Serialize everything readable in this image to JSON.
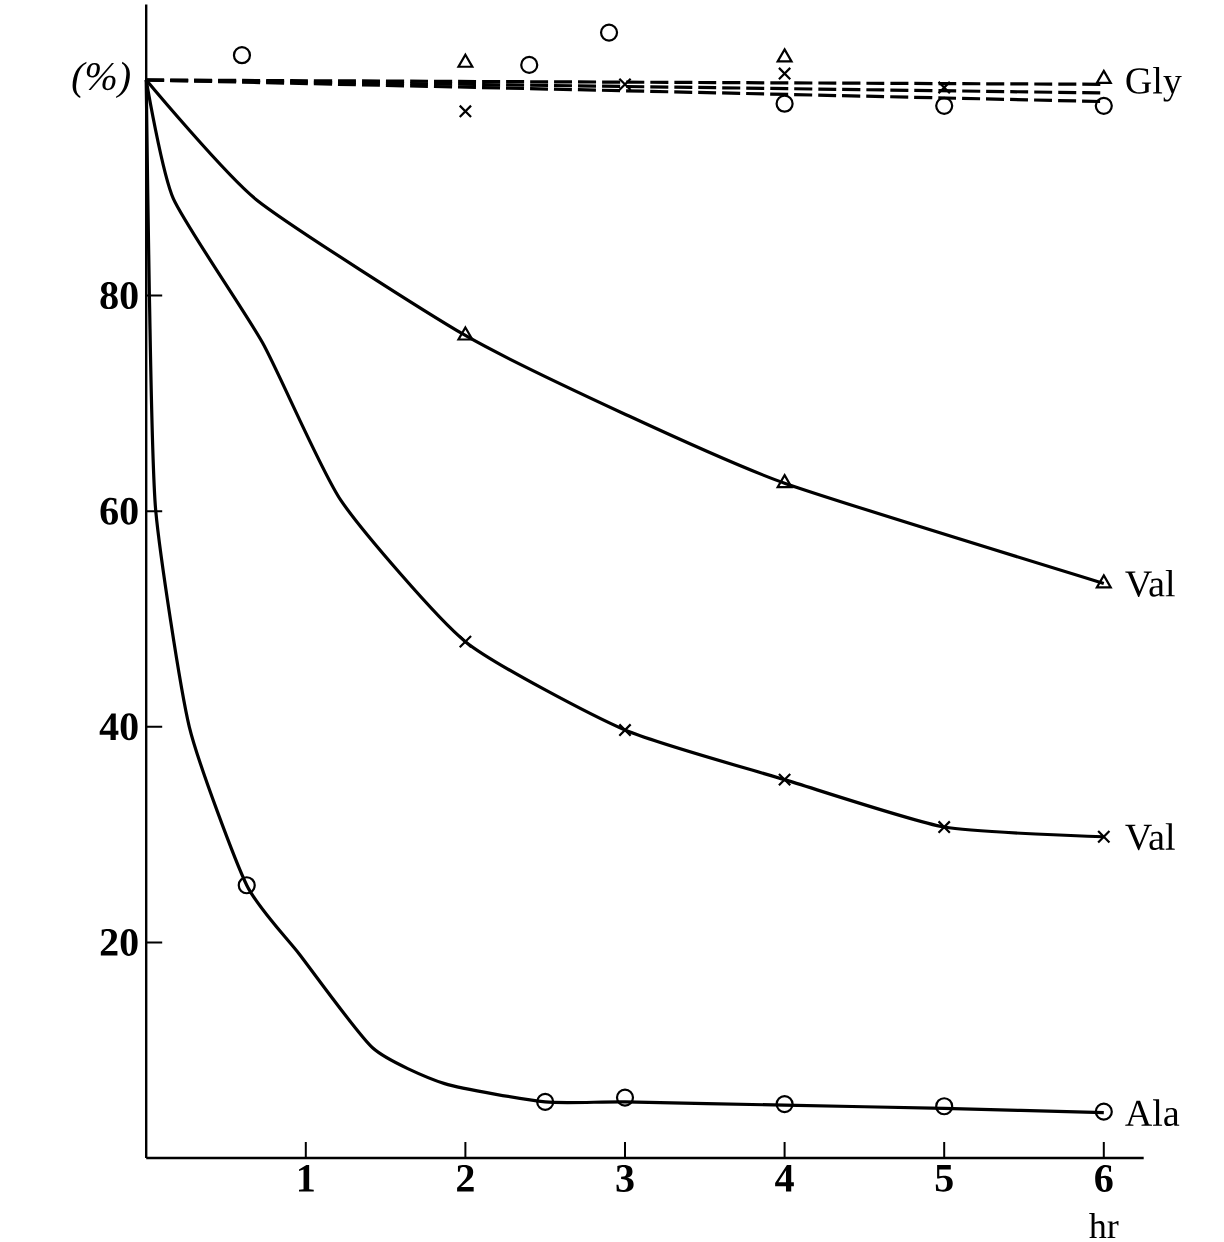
{
  "chart_data": {
    "type": "line",
    "xlabel": "hr",
    "ylabel": "(%)",
    "xlim": [
      0,
      6.25
    ],
    "ylim": [
      0,
      107
    ],
    "xticks": [
      1,
      2,
      3,
      4,
      5,
      6
    ],
    "yticks": [
      20,
      40,
      60,
      80
    ],
    "series": [
      {
        "name": "Gly",
        "color": "#000000",
        "marker": "none",
        "line_style": "dashed",
        "x": [
          0,
          6
        ],
        "values": [
          100,
          99.6
        ]
      },
      {
        "color": "#000000",
        "marker": "none",
        "line_style": "dashed",
        "x": [
          0,
          6
        ],
        "values": [
          100,
          98.8
        ]
      },
      {
        "color": "#000000",
        "marker": "none",
        "line_style": "dashed",
        "x": [
          0,
          6
        ],
        "values": [
          100,
          98.0
        ]
      },
      {
        "type": "scatter",
        "color": "#000000",
        "marker": "circle",
        "x": [
          0.6,
          2.4,
          2.9,
          4,
          5,
          6
        ],
        "values": [
          102.3,
          101.4,
          104.4,
          97.8,
          97.6,
          97.6
        ]
      },
      {
        "type": "scatter",
        "color": "#000000",
        "marker": "triangle",
        "x": [
          2,
          4,
          6
        ],
        "values": [
          101.6,
          102.1,
          100.1
        ]
      },
      {
        "type": "scatter",
        "color": "#000000",
        "marker": "cross",
        "x": [
          2,
          3,
          4,
          5
        ],
        "values": [
          97.1,
          99.6,
          100.6,
          99.3
        ]
      },
      {
        "name": "Val",
        "color": "#000000",
        "marker": "none",
        "line_style": "solid",
        "x": [
          0,
          0.69,
          2,
          3,
          4,
          6
        ],
        "values": [
          100,
          88.9,
          76.3,
          69.0,
          62.6,
          53.3
        ]
      },
      {
        "type": "scatter",
        "color": "#000000",
        "marker": "triangle",
        "x": [
          2,
          4,
          6
        ],
        "values": [
          76.3,
          62.6,
          53.3
        ]
      },
      {
        "name": "Val",
        "color": "#000000",
        "marker": "none",
        "line_style": "solid",
        "x": [
          0,
          0.17,
          0.73,
          1.22,
          2,
          3,
          4,
          5,
          6
        ],
        "values": [
          100,
          89,
          75.6,
          61.0,
          47.9,
          39.7,
          35.1,
          30.7,
          29.8
        ]
      },
      {
        "type": "scatter",
        "color": "#000000",
        "marker": "cross",
        "x": [
          2,
          3,
          4,
          5,
          6
        ],
        "values": [
          47.9,
          39.7,
          35.1,
          30.7,
          29.8
        ]
      },
      {
        "name": "Ala",
        "color": "#000000",
        "marker": "none",
        "line_style": "solid",
        "x": [
          0,
          0.02,
          0.06,
          0.27,
          0.63,
          0.96,
          1.42,
          1.87,
          2.5,
          3,
          4,
          5,
          6
        ],
        "values": [
          100,
          80,
          60,
          40,
          25.3,
          18.9,
          10.2,
          6.9,
          5.2,
          5.2,
          4.9,
          4.6,
          4.2
        ]
      },
      {
        "type": "scatter",
        "color": "#000000",
        "marker": "circle",
        "x": [
          0.63,
          2.5,
          3,
          4,
          5,
          6
        ],
        "values": [
          25.3,
          5.2,
          5.6,
          5.0,
          4.8,
          4.3
        ]
      }
    ]
  }
}
